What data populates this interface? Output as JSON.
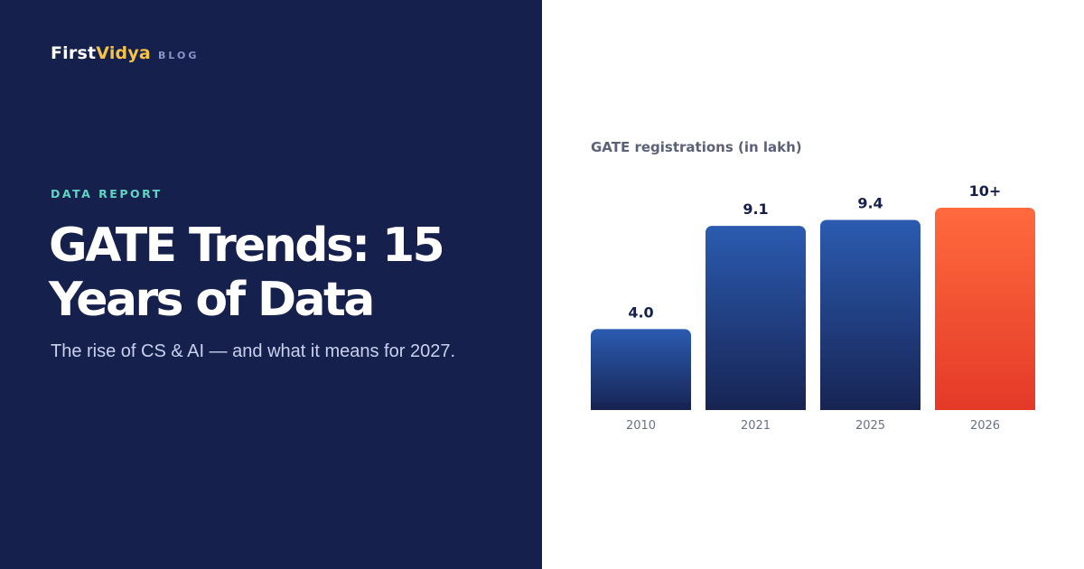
{
  "brand": {
    "first": "First",
    "vidya": "Vidya",
    "section": "BLOG"
  },
  "hero": {
    "eyebrow": "DATA REPORT",
    "title_line1": "GATE Trends: 15",
    "title_line2": "Years of Data",
    "subtitle": "The rise of CS & AI — and what it means for 2027."
  },
  "colors": {
    "panel_navy": "#16204d",
    "brand_accent": "#f6c344",
    "eyebrow_teal": "#5fd6c4",
    "bar_blue_top": "#2b5bb0",
    "bar_blue_bottom": "#172454",
    "bar_highlight_top": "#ff6a3d",
    "bar_highlight_bottom": "#e43a28"
  },
  "chart_data": {
    "type": "bar",
    "title": "GATE registrations (in lakh)",
    "categories": [
      "2010",
      "2021",
      "2025",
      "2026"
    ],
    "values": [
      4.0,
      9.1,
      9.4,
      10
    ],
    "value_labels": [
      "4.0",
      "9.1",
      "9.4",
      "10+"
    ],
    "highlight": [
      "2026"
    ],
    "ylim": [
      0,
      10
    ],
    "grid": false,
    "legend": "none"
  }
}
